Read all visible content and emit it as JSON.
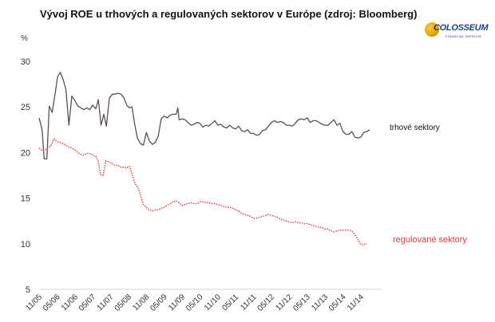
{
  "logo": {
    "name": "COLOSSEUM",
    "sub": "FINANCIAL IMPROVE"
  },
  "chart_data": {
    "type": "line",
    "title": "Vývoj ROE u trhových a regulovaných sektorov v Európe (zdroj: Bloomberg)",
    "ylabel": "%",
    "xlabel": "",
    "ylim": [
      5,
      30
    ],
    "yticks": [
      5,
      10,
      15,
      20,
      25,
      30
    ],
    "xlim": [
      0,
      115
    ],
    "xticks": [
      {
        "x": 0,
        "label": "11/05"
      },
      {
        "x": 6,
        "label": "05/06"
      },
      {
        "x": 12,
        "label": "11/06"
      },
      {
        "x": 18,
        "label": "05/07"
      },
      {
        "x": 24,
        "label": "11/07"
      },
      {
        "x": 30,
        "label": "05/08"
      },
      {
        "x": 36,
        "label": "11/08"
      },
      {
        "x": 42,
        "label": "05/09"
      },
      {
        "x": 48,
        "label": "11/09"
      },
      {
        "x": 54,
        "label": "05/10"
      },
      {
        "x": 60,
        "label": "11/10"
      },
      {
        "x": 66,
        "label": "05/11"
      },
      {
        "x": 72,
        "label": "11/11"
      },
      {
        "x": 78,
        "label": "05/12"
      },
      {
        "x": 84,
        "label": "11/12"
      },
      {
        "x": 90,
        "label": "05/13"
      },
      {
        "x": 96,
        "label": "11/13"
      },
      {
        "x": 102,
        "label": "05/14"
      },
      {
        "x": 108,
        "label": "11/14"
      }
    ],
    "grid": false,
    "series": [
      {
        "name": "trhové sektory",
        "color": "#5b4e58",
        "style": "solid",
        "points": [
          [
            0,
            23.8
          ],
          [
            1,
            22.5
          ],
          [
            1.7,
            19.3
          ],
          [
            2.6,
            19.3
          ],
          [
            3.4,
            25.1
          ],
          [
            4.4,
            24.4
          ],
          [
            5.4,
            26.5
          ],
          [
            6.2,
            28.3
          ],
          [
            7.1,
            28.8
          ],
          [
            8.1,
            28.0
          ],
          [
            9,
            26.9
          ],
          [
            10,
            23.0
          ],
          [
            11,
            26.2
          ],
          [
            12,
            25.7
          ],
          [
            13,
            25.1
          ],
          [
            14,
            24.9
          ],
          [
            15,
            24.7
          ],
          [
            16,
            24.9
          ],
          [
            17,
            24.7
          ],
          [
            18,
            25.2
          ],
          [
            19,
            24.8
          ],
          [
            19.9,
            25.8
          ],
          [
            20.8,
            23.0
          ],
          [
            21.7,
            24.2
          ],
          [
            22.6,
            22.9
          ],
          [
            23.6,
            26.0
          ],
          [
            24.6,
            26.4
          ],
          [
            25.5,
            26.4
          ],
          [
            26.5,
            26.5
          ],
          [
            27.5,
            26.4
          ],
          [
            28.5,
            26.0
          ],
          [
            29.4,
            25.2
          ],
          [
            30.3,
            24.9
          ],
          [
            31.2,
            25.0
          ],
          [
            32.1,
            23.1
          ],
          [
            33,
            21.6
          ],
          [
            34,
            21.0
          ],
          [
            35,
            20.8
          ],
          [
            36,
            22.2
          ],
          [
            37,
            21.3
          ],
          [
            38,
            20.9
          ],
          [
            39,
            21.1
          ],
          [
            40,
            21.8
          ],
          [
            41,
            23.7
          ],
          [
            42,
            24.0
          ],
          [
            43,
            23.8
          ],
          [
            44,
            24.1
          ],
          [
            45,
            24.2
          ],
          [
            46,
            24.2
          ],
          [
            46.6,
            24.9
          ],
          [
            47,
            23.6
          ],
          [
            48,
            23.7
          ],
          [
            49,
            23.6
          ],
          [
            50,
            23.3
          ],
          [
            51,
            23.0
          ],
          [
            52,
            23.1
          ],
          [
            53,
            23.3
          ],
          [
            54,
            23.2
          ],
          [
            55,
            22.8
          ],
          [
            56,
            23.0
          ],
          [
            57,
            22.9
          ],
          [
            58,
            23.2
          ],
          [
            59,
            23.5
          ],
          [
            60,
            23.0
          ],
          [
            61,
            23.1
          ],
          [
            62,
            22.8
          ],
          [
            63,
            22.7
          ],
          [
            64,
            23.0
          ],
          [
            65,
            22.7
          ],
          [
            66,
            22.6
          ],
          [
            67,
            22.9
          ],
          [
            68,
            22.4
          ],
          [
            69,
            22.3
          ],
          [
            70,
            22.5
          ],
          [
            71,
            22.1
          ],
          [
            72,
            22.1
          ],
          [
            73,
            21.9
          ],
          [
            74,
            22.0
          ],
          [
            75,
            22.4
          ],
          [
            76,
            22.5
          ],
          [
            77,
            22.9
          ],
          [
            78,
            23.3
          ],
          [
            79,
            23.5
          ],
          [
            80,
            23.3
          ],
          [
            81,
            23.4
          ],
          [
            82,
            23.3
          ],
          [
            83,
            23.0
          ],
          [
            84,
            23.0
          ],
          [
            85,
            22.9
          ],
          [
            86,
            23.2
          ],
          [
            87,
            23.6
          ],
          [
            88,
            23.7
          ],
          [
            89,
            23.6
          ],
          [
            90,
            23.8
          ],
          [
            91,
            23.3
          ],
          [
            92,
            23.5
          ],
          [
            93,
            23.5
          ],
          [
            94,
            23.3
          ],
          [
            95,
            23.1
          ],
          [
            96,
            23.0
          ],
          [
            97,
            23.0
          ],
          [
            98,
            23.3
          ],
          [
            99,
            23.6
          ],
          [
            100,
            23.0
          ],
          [
            101,
            23.2
          ],
          [
            102,
            22.3
          ],
          [
            103,
            22.0
          ],
          [
            104,
            22.0
          ],
          [
            105,
            22.3
          ],
          [
            106,
            21.7
          ],
          [
            107,
            21.6
          ],
          [
            108,
            21.7
          ],
          [
            109,
            22.2
          ],
          [
            110,
            22.3
          ],
          [
            111,
            22.5
          ]
        ]
      },
      {
        "name": "regulované sektory",
        "color": "#e8393b",
        "style": "dotted",
        "points": [
          [
            0,
            20.5
          ],
          [
            1,
            20.2
          ],
          [
            2,
            20.3
          ],
          [
            3,
            20.5
          ],
          [
            4,
            20.8
          ],
          [
            5,
            21.5
          ],
          [
            6,
            21.2
          ],
          [
            7,
            21.1
          ],
          [
            8,
            21.0
          ],
          [
            9,
            20.8
          ],
          [
            10,
            20.6
          ],
          [
            11,
            20.5
          ],
          [
            12,
            20.3
          ],
          [
            13,
            20.0
          ],
          [
            14,
            19.8
          ],
          [
            15,
            19.7
          ],
          [
            16,
            19.9
          ],
          [
            17,
            19.9
          ],
          [
            18,
            19.7
          ],
          [
            19,
            19.6
          ],
          [
            19.8,
            19.1
          ],
          [
            20.6,
            17.6
          ],
          [
            21.5,
            17.5
          ],
          [
            22.4,
            19.1
          ],
          [
            23.4,
            19.0
          ],
          [
            24.4,
            18.8
          ],
          [
            25.4,
            18.6
          ],
          [
            26.4,
            18.6
          ],
          [
            27.4,
            18.4
          ],
          [
            28.4,
            18.4
          ],
          [
            29.4,
            18.3
          ],
          [
            30.4,
            18.5
          ],
          [
            31.3,
            17.5
          ],
          [
            32.2,
            16.6
          ],
          [
            33.1,
            16.2
          ],
          [
            34,
            15.4
          ],
          [
            35,
            14.3
          ],
          [
            36,
            14.0
          ],
          [
            37,
            13.7
          ],
          [
            38,
            13.6
          ],
          [
            39,
            13.7
          ],
          [
            40,
            13.7
          ],
          [
            41,
            13.9
          ],
          [
            42,
            14.0
          ],
          [
            43,
            14.2
          ],
          [
            44,
            14.4
          ],
          [
            45,
            14.6
          ],
          [
            46,
            14.7
          ],
          [
            47,
            14.5
          ],
          [
            48,
            14.2
          ],
          [
            49,
            14.3
          ],
          [
            50,
            14.4
          ],
          [
            51,
            14.5
          ],
          [
            52,
            14.4
          ],
          [
            53,
            14.4
          ],
          [
            54,
            14.6
          ],
          [
            55,
            14.6
          ],
          [
            56,
            14.5
          ],
          [
            57,
            14.5
          ],
          [
            58,
            14.4
          ],
          [
            59,
            14.4
          ],
          [
            60,
            14.3
          ],
          [
            61,
            14.2
          ],
          [
            62,
            14.1
          ],
          [
            63,
            14.0
          ],
          [
            64,
            14.0
          ],
          [
            65,
            13.9
          ],
          [
            66,
            13.7
          ],
          [
            67,
            13.6
          ],
          [
            68,
            13.3
          ],
          [
            69,
            13.2
          ],
          [
            70,
            13.1
          ],
          [
            71,
            13.0
          ],
          [
            72,
            12.8
          ],
          [
            73,
            12.8
          ],
          [
            74,
            12.9
          ],
          [
            75,
            13.0
          ],
          [
            76,
            13.1
          ],
          [
            77,
            13.2
          ],
          [
            78,
            13.1
          ],
          [
            79,
            13.0
          ],
          [
            80,
            12.9
          ],
          [
            81,
            12.7
          ],
          [
            82,
            12.6
          ],
          [
            83,
            12.5
          ],
          [
            84,
            12.4
          ],
          [
            85,
            12.3
          ],
          [
            86,
            12.4
          ],
          [
            87,
            12.3
          ],
          [
            88,
            12.3
          ],
          [
            89,
            12.2
          ],
          [
            90,
            12.2
          ],
          [
            91,
            12.1
          ],
          [
            92,
            12.0
          ],
          [
            93,
            11.9
          ],
          [
            94,
            11.8
          ],
          [
            95,
            11.8
          ],
          [
            96,
            11.6
          ],
          [
            97,
            11.6
          ],
          [
            98,
            11.4
          ],
          [
            99,
            11.3
          ],
          [
            100,
            11.4
          ],
          [
            101,
            11.5
          ],
          [
            102,
            11.5
          ],
          [
            103,
            11.5
          ],
          [
            104,
            11.5
          ],
          [
            105,
            11.4
          ],
          [
            106,
            11.0
          ],
          [
            107,
            10.5
          ],
          [
            108,
            9.9
          ],
          [
            109,
            9.9
          ],
          [
            110,
            10.0
          ]
        ]
      }
    ],
    "labels": [
      {
        "text": "trhové sektory",
        "series": 0,
        "color": "#111111"
      },
      {
        "text": "regulované sektory",
        "series": 1,
        "color": "#e8393b"
      }
    ]
  }
}
